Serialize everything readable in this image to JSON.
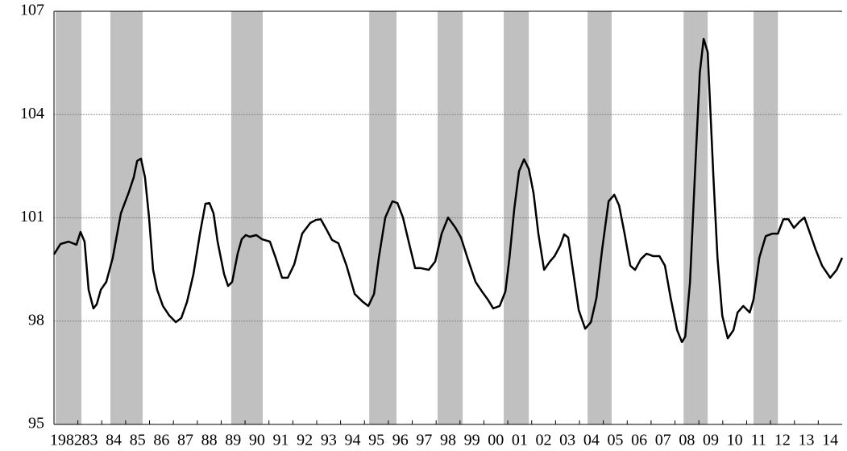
{
  "chart_data": {
    "type": "line",
    "xlim": [
      1982,
      2015
    ],
    "ylim": [
      95,
      107
    ],
    "yticks": [
      95,
      98,
      101,
      104,
      107
    ],
    "xticks": [
      {
        "value": 1982,
        "label": "1982"
      },
      {
        "value": 1983,
        "label": "83"
      },
      {
        "value": 1984,
        "label": "84"
      },
      {
        "value": 1985,
        "label": "85"
      },
      {
        "value": 1986,
        "label": "86"
      },
      {
        "value": 1987,
        "label": "87"
      },
      {
        "value": 1988,
        "label": "88"
      },
      {
        "value": 1989,
        "label": "89"
      },
      {
        "value": 1990,
        "label": "90"
      },
      {
        "value": 1991,
        "label": "91"
      },
      {
        "value": 1992,
        "label": "92"
      },
      {
        "value": 1993,
        "label": "93"
      },
      {
        "value": 1994,
        "label": "94"
      },
      {
        "value": 1995,
        "label": "95"
      },
      {
        "value": 1996,
        "label": "96"
      },
      {
        "value": 1997,
        "label": "97"
      },
      {
        "value": 1998,
        "label": "98"
      },
      {
        "value": 1999,
        "label": "99"
      },
      {
        "value": 2000,
        "label": "00"
      },
      {
        "value": 2001,
        "label": "01"
      },
      {
        "value": 2002,
        "label": "02"
      },
      {
        "value": 2003,
        "label": "03"
      },
      {
        "value": 2004,
        "label": "04"
      },
      {
        "value": 2005,
        "label": "05"
      },
      {
        "value": 2006,
        "label": "06"
      },
      {
        "value": 2007,
        "label": "07"
      },
      {
        "value": 2008,
        "label": "08"
      },
      {
        "value": 2009,
        "label": "09"
      },
      {
        "value": 2010,
        "label": "10"
      },
      {
        "value": 2011,
        "label": "11"
      },
      {
        "value": 2012,
        "label": "12"
      },
      {
        "value": 2013,
        "label": "13"
      },
      {
        "value": 2014,
        "label": "14"
      }
    ],
    "grid": true,
    "shade_color": "#c0c0c0",
    "shaded_periods": [
      [
        1982.07,
        1983.15
      ],
      [
        1984.36,
        1985.71
      ],
      [
        1989.42,
        1990.74
      ],
      [
        1995.2,
        1996.34
      ],
      [
        1998.06,
        1999.11
      ],
      [
        2000.83,
        2001.88
      ],
      [
        2004.34,
        2005.35
      ],
      [
        2008.36,
        2009.37
      ],
      [
        2011.29,
        2012.31
      ]
    ],
    "x": [
      1982.0,
      1982.27,
      1982.61,
      1982.94,
      1983.11,
      1983.28,
      1983.45,
      1983.65,
      1983.79,
      1983.96,
      1984.19,
      1984.46,
      1984.8,
      1985.14,
      1985.34,
      1985.48,
      1985.64,
      1985.81,
      1985.98,
      1986.15,
      1986.32,
      1986.56,
      1986.83,
      1987.1,
      1987.33,
      1987.57,
      1987.84,
      1988.11,
      1988.34,
      1988.51,
      1988.68,
      1988.85,
      1989.12,
      1989.29,
      1989.46,
      1989.69,
      1989.86,
      1990.03,
      1990.2,
      1990.47,
      1990.71,
      1991.04,
      1991.28,
      1991.55,
      1991.79,
      1992.06,
      1992.39,
      1992.73,
      1992.97,
      1993.17,
      1993.41,
      1993.64,
      1993.91,
      1994.25,
      1994.59,
      1994.93,
      1995.16,
      1995.4,
      1995.6,
      1995.87,
      1996.17,
      1996.38,
      1996.61,
      1996.85,
      1997.12,
      1997.36,
      1997.69,
      1997.96,
      1998.23,
      1998.5,
      1998.81,
      1999.04,
      1999.31,
      1999.65,
      1999.92,
      2000.16,
      2000.39,
      2000.66,
      2000.9,
      2001.07,
      2001.27,
      2001.47,
      2001.68,
      2001.88,
      2002.08,
      2002.28,
      2002.52,
      2002.76,
      2002.96,
      2003.19,
      2003.36,
      2003.53,
      2003.7,
      2003.97,
      2004.24,
      2004.48,
      2004.71,
      2004.95,
      2005.22,
      2005.46,
      2005.66,
      2005.89,
      2006.13,
      2006.33,
      2006.57,
      2006.81,
      2007.08,
      2007.35,
      2007.58,
      2007.82,
      2008.09,
      2008.29,
      2008.43,
      2008.63,
      2008.83,
      2009.04,
      2009.2,
      2009.37,
      2009.61,
      2009.78,
      2009.98,
      2010.21,
      2010.45,
      2010.62,
      2010.86,
      2011.13,
      2011.29,
      2011.53,
      2011.8,
      2012.07,
      2012.31,
      2012.54,
      2012.75,
      2012.98,
      2013.22,
      2013.42,
      2013.66,
      2013.89,
      2014.16,
      2014.5,
      2014.77,
      2015.0
    ],
    "series": [
      {
        "color": "#000000",
        "values": [
          99.94,
          100.24,
          100.31,
          100.22,
          100.59,
          100.31,
          98.91,
          98.37,
          98.49,
          98.91,
          99.14,
          99.84,
          101.13,
          101.76,
          102.18,
          102.65,
          102.72,
          102.18,
          101.01,
          99.49,
          98.91,
          98.44,
          98.16,
          97.97,
          98.09,
          98.56,
          99.37,
          100.54,
          101.41,
          101.43,
          101.13,
          100.31,
          99.37,
          99.02,
          99.14,
          99.96,
          100.38,
          100.5,
          100.45,
          100.5,
          100.38,
          100.31,
          99.84,
          99.26,
          99.26,
          99.65,
          100.54,
          100.85,
          100.94,
          100.96,
          100.66,
          100.36,
          100.26,
          99.61,
          98.79,
          98.56,
          98.44,
          98.79,
          99.84,
          101.01,
          101.48,
          101.43,
          101.01,
          100.31,
          99.54,
          99.54,
          99.49,
          99.73,
          100.54,
          101.01,
          100.71,
          100.43,
          99.84,
          99.14,
          98.86,
          98.63,
          98.37,
          98.44,
          98.86,
          99.84,
          101.25,
          102.35,
          102.7,
          102.42,
          101.71,
          100.54,
          99.49,
          99.73,
          99.89,
          100.19,
          100.52,
          100.43,
          99.61,
          98.32,
          97.78,
          97.97,
          98.67,
          100.08,
          101.48,
          101.67,
          101.36,
          100.54,
          99.61,
          99.49,
          99.8,
          99.96,
          99.89,
          99.89,
          99.61,
          98.67,
          97.74,
          97.39,
          97.55,
          99.14,
          102.18,
          105.22,
          106.2,
          105.81,
          102.18,
          99.84,
          98.16,
          97.5,
          97.74,
          98.25,
          98.44,
          98.25,
          98.63,
          99.84,
          100.47,
          100.54,
          100.54,
          100.96,
          100.96,
          100.71,
          100.89,
          101.01,
          100.54,
          100.08,
          99.61,
          99.26,
          99.49,
          99.84
        ]
      }
    ]
  }
}
